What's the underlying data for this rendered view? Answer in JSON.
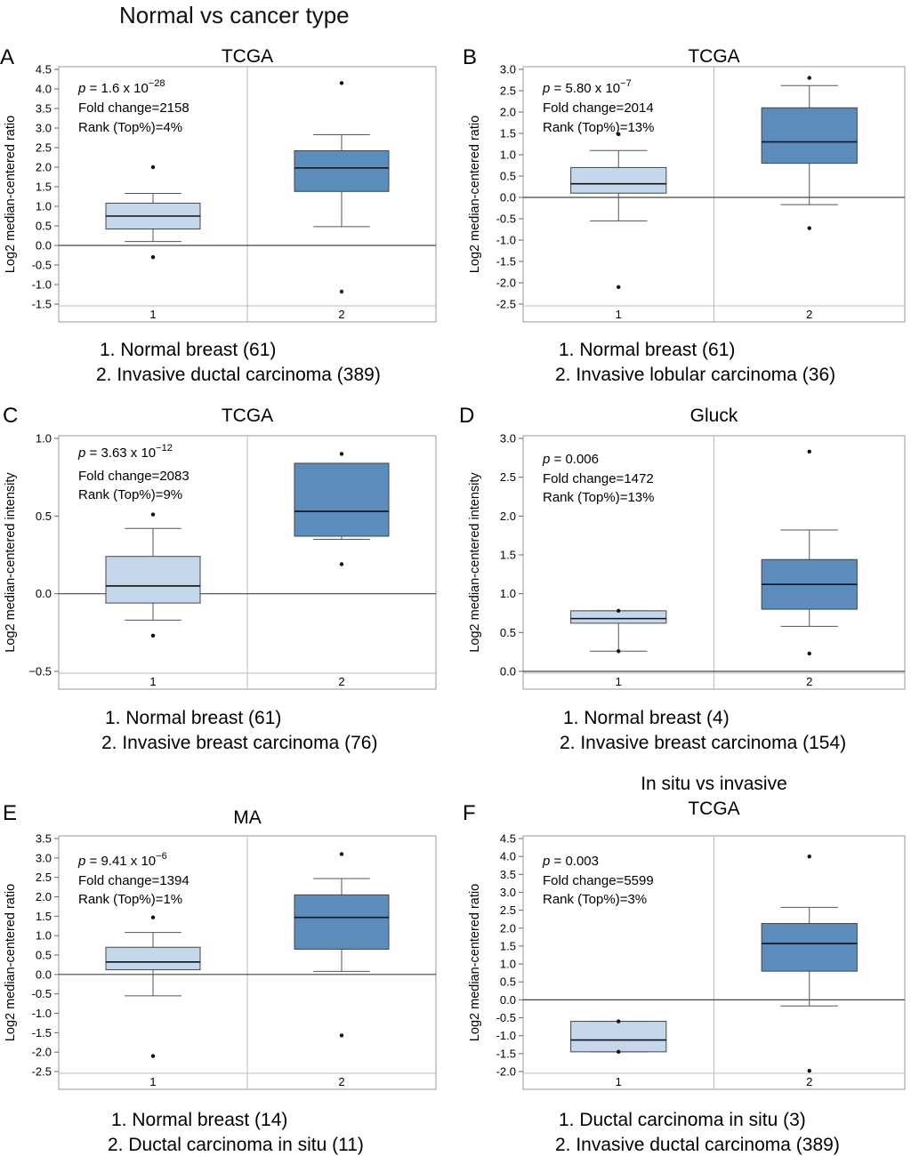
{
  "header": {
    "title": "Normal vs cancer type"
  },
  "chart_data": [
    {
      "type": "box",
      "letter": "A",
      "title": "TCGA",
      "ylabel": "Log2 median-centered ratio",
      "ylim": [
        -1.5,
        4.5
      ],
      "yticks": [
        4.5,
        4.0,
        3.5,
        3.0,
        2.5,
        2.0,
        1.5,
        1.0,
        0.5,
        0.0,
        -0.5,
        -1.0,
        -1.5
      ],
      "ytick_labels": [
        "4.5",
        "4.0",
        "3.5",
        "3.0",
        "2.5",
        "2.0",
        "1.5",
        "1.0",
        "0.5",
        "0.0",
        "-0.5",
        "-1.0",
        "-1.5"
      ],
      "categories": [
        "1",
        "2"
      ],
      "boxes": [
        {
          "whisker_low": 0.1,
          "q1": 0.42,
          "median": 0.75,
          "q3": 1.08,
          "whisker_high": 1.33,
          "outliers": [
            2.0,
            -0.3
          ],
          "fill": "#c5d7ea"
        },
        {
          "whisker_low": 0.48,
          "q1": 1.38,
          "median": 1.98,
          "q3": 2.42,
          "whisker_high": 2.83,
          "outliers": [
            4.15,
            -1.18
          ],
          "fill": "#5b8cbb"
        }
      ],
      "stats": {
        "p_prefix": "= 1.6 x 10",
        "p_exponent": "−28",
        "fold_change": "Fold change=2158",
        "rank": "Rank (Top%)=4%"
      },
      "legend": [
        "1. Normal breast (61)",
        "2. Invasive ductal carcinoma (389)"
      ]
    },
    {
      "type": "box",
      "letter": "B",
      "title": "TCGA",
      "ylabel": "Log2 median-centered ratio",
      "ylim": [
        -2.5,
        3.0
      ],
      "yticks": [
        3.0,
        2.5,
        2.0,
        1.5,
        1.0,
        0.5,
        0.0,
        -0.5,
        -1.0,
        -1.5,
        -2.0,
        -2.5
      ],
      "ytick_labels": [
        "3.0",
        "2.5",
        "2.0",
        "1.5",
        "1.0",
        "0.5",
        "0.0",
        "-0.5",
        "-1.0",
        "-1.5",
        "-2.0",
        "-2.5"
      ],
      "categories": [
        "1",
        "2"
      ],
      "boxes": [
        {
          "whisker_low": -0.55,
          "q1": 0.1,
          "median": 0.32,
          "q3": 0.7,
          "whisker_high": 1.1,
          "outliers": [
            1.48,
            -2.1
          ],
          "fill": "#c5d7ea"
        },
        {
          "whisker_low": -0.17,
          "q1": 0.8,
          "median": 1.3,
          "q3": 2.1,
          "whisker_high": 2.62,
          "outliers": [
            2.8,
            -0.72
          ],
          "fill": "#5b8cbb"
        }
      ],
      "stats": {
        "p_prefix": "= 5.80 x 10",
        "p_exponent": "−7",
        "fold_change": "Fold change=2014",
        "rank": "Rank (Top%)=13%"
      },
      "legend": [
        "1. Normal breast (61)",
        "2. Invasive lobular carcinoma (36)"
      ]
    },
    {
      "type": "box",
      "letter": "C",
      "title": "TCGA",
      "ylabel": "Log2 median-centered intensity",
      "ylim": [
        -0.5,
        1.0
      ],
      "yticks": [
        1.0,
        0.5,
        0.0,
        -0.5
      ],
      "ytick_labels": [
        "1.0",
        "0.5",
        "0.0",
        "−0.5"
      ],
      "categories": [
        "1",
        "2"
      ],
      "boxes": [
        {
          "whisker_low": -0.17,
          "q1": -0.06,
          "median": 0.05,
          "q3": 0.24,
          "whisker_high": 0.42,
          "outliers": [
            0.51,
            -0.27
          ],
          "fill": "#c5d7ea"
        },
        {
          "whisker_low": 0.35,
          "q1": 0.37,
          "median": 0.53,
          "q3": 0.84,
          "whisker_high": 0.84,
          "outliers": [
            0.9,
            0.19
          ],
          "fill": "#5b8cbb"
        }
      ],
      "stats": {
        "p_prefix": "= 3.63 x 10",
        "p_exponent": "−12",
        "fold_change": "Fold change=2083",
        "rank": "Rank (Top%)=9%"
      },
      "legend": [
        "1. Normal breast (61)",
        "2. Invasive breast carcinoma (76)"
      ]
    },
    {
      "type": "box",
      "letter": "D",
      "title": "Gluck",
      "ylabel": "Log2 median-centered intensity",
      "ylim": [
        0.0,
        3.0
      ],
      "yticks": [
        3.0,
        2.5,
        2.0,
        1.5,
        1.0,
        0.5,
        0.0
      ],
      "ytick_labels": [
        "3.0",
        "2.5",
        "2.0",
        "1.5",
        "1.0",
        "0.5",
        "0.0"
      ],
      "categories": [
        "1",
        "2"
      ],
      "boxes": [
        {
          "whisker_low": 0.26,
          "q1": 0.62,
          "median": 0.68,
          "q3": 0.78,
          "whisker_high": 0.78,
          "outliers": [
            0.78,
            0.26
          ],
          "fill": "#c5d7ea"
        },
        {
          "whisker_low": 0.58,
          "q1": 0.8,
          "median": 1.12,
          "q3": 1.44,
          "whisker_high": 1.82,
          "outliers": [
            2.83,
            0.23
          ],
          "fill": "#5b8cbb"
        }
      ],
      "stats": {
        "p_prefix": "= 0.006",
        "p_exponent": "",
        "fold_change": "Fold change=1472",
        "rank": "Rank (Top%)=13%"
      },
      "legend": [
        "1. Normal breast (4)",
        "2. Invasive breast carcinoma (154)"
      ]
    },
    {
      "type": "box",
      "letter": "E",
      "title": "MA",
      "ylabel": "Log2 median-centered ratio",
      "ylim": [
        -2.5,
        3.5
      ],
      "yticks": [
        3.5,
        3.0,
        2.5,
        2.0,
        1.5,
        1.0,
        0.5,
        0.0,
        -0.5,
        -1.0,
        -1.5,
        -2.0,
        -2.5
      ],
      "ytick_labels": [
        "3.5",
        "3.0",
        "2.5",
        "2.0",
        "1.5",
        "1.0",
        "0.5",
        "0.0",
        "-0.5",
        "-1.0",
        "-1.5",
        "-2.0",
        "-2.5"
      ],
      "categories": [
        "1",
        "2"
      ],
      "boxes": [
        {
          "whisker_low": -0.55,
          "q1": 0.12,
          "median": 0.32,
          "q3": 0.7,
          "whisker_high": 1.08,
          "outliers": [
            1.47,
            -2.1
          ],
          "fill": "#c5d7ea"
        },
        {
          "whisker_low": 0.08,
          "q1": 0.65,
          "median": 1.47,
          "q3": 2.05,
          "whisker_high": 2.47,
          "outliers": [
            3.1,
            -1.57
          ],
          "fill": "#5b8cbb"
        }
      ],
      "stats": {
        "p_prefix": "= 9.41 x 10",
        "p_exponent": "−6",
        "fold_change": "Fold change=1394",
        "rank": "Rank (Top%)=1%"
      },
      "legend": [
        "1. Normal breast (14)",
        "2. Ductal carcinoma in situ (11)"
      ]
    },
    {
      "type": "box",
      "letter": "F",
      "supertitle": "In situ vs invasive",
      "title": "TCGA",
      "ylabel": "Log2 median-centered ratio",
      "ylim": [
        -2.0,
        4.5
      ],
      "yticks": [
        4.5,
        4.0,
        3.5,
        3.0,
        2.5,
        2.0,
        1.5,
        1.0,
        0.5,
        0.0,
        -0.5,
        -1.0,
        -1.5,
        -2.0
      ],
      "ytick_labels": [
        "4.5",
        "4.0",
        "3.5",
        "3.0",
        "2.5",
        "2.0",
        "1.5",
        "1.0",
        "0.5",
        "0.0",
        "-0.5",
        "-1.0",
        "-1.5",
        "-2.0"
      ],
      "categories": [
        "1",
        "2"
      ],
      "boxes": [
        {
          "whisker_low": -1.45,
          "q1": -1.45,
          "median": -1.12,
          "q3": -0.6,
          "whisker_high": -0.6,
          "outliers": [
            -0.6,
            -1.45
          ],
          "fill": "#c5d7ea"
        },
        {
          "whisker_low": -0.17,
          "q1": 0.8,
          "median": 1.57,
          "q3": 2.13,
          "whisker_high": 2.58,
          "outliers": [
            4.0,
            -1.98
          ],
          "fill": "#5b8cbb"
        }
      ],
      "stats": {
        "p_prefix": "= 0.003",
        "p_exponent": "",
        "fold_change": "Fold change=5599",
        "rank": "Rank (Top%)=3%"
      },
      "legend": [
        "1. Ductal carcinoma in situ (3)",
        "2. Invasive ductal carcinoma (389)"
      ]
    }
  ]
}
